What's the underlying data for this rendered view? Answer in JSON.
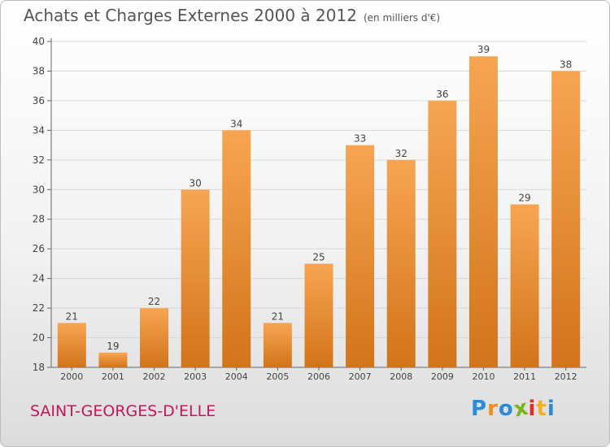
{
  "header": {
    "title": "Achats et Charges Externes 2000 à 2012",
    "unit": "(en milliers d'€)"
  },
  "footer": {
    "place": "SAINT-GEORGES-D'ELLE",
    "logo_letters": [
      {
        "ch": "P",
        "color": "#2a8bd8"
      },
      {
        "ch": "r",
        "color": "#f28c1e"
      },
      {
        "ch": "o",
        "color": "#2a8bd8"
      },
      {
        "ch": "x",
        "color": "#7ab317"
      },
      {
        "ch": "i",
        "color": "#e52b2b"
      },
      {
        "ch": "t",
        "color": "#f2b21e"
      },
      {
        "ch": "i",
        "color": "#2a8bd8"
      }
    ]
  },
  "chart_data": {
    "type": "bar",
    "title": "Achats et Charges Externes 2000 à 2012",
    "subtitle": "(en milliers d'€)",
    "categories": [
      "2000",
      "2001",
      "2002",
      "2003",
      "2004",
      "2005",
      "2006",
      "2007",
      "2008",
      "2009",
      "2010",
      "2011",
      "2012"
    ],
    "values": [
      21,
      19,
      22,
      30,
      34,
      21,
      25,
      33,
      32,
      36,
      39,
      29,
      38
    ],
    "ylim": [
      18,
      40
    ],
    "yticks": [
      18,
      20,
      22,
      24,
      26,
      28,
      30,
      32,
      34,
      36,
      38,
      40
    ],
    "grid": true,
    "bar_color_top": "#f7a552",
    "bar_color_bottom": "#d2741b",
    "xlabel": "",
    "ylabel": ""
  }
}
